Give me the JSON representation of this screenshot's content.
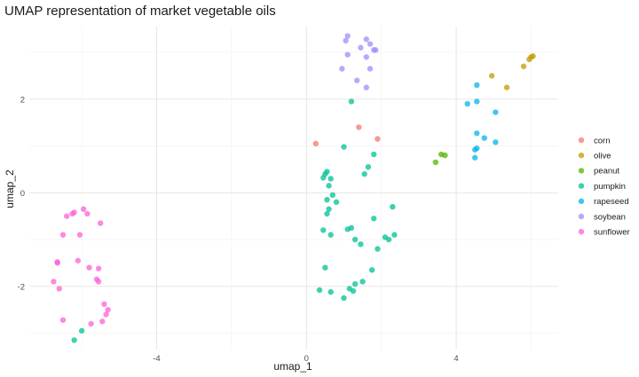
{
  "chart_data": {
    "type": "scatter",
    "title": "UMAP representation of market vegetable oils",
    "xlabel": "umap_1",
    "ylabel": "umap_2",
    "xlim": [
      -7.4,
      6.7
    ],
    "ylim": [
      -3.35,
      3.55
    ],
    "x_ticks": [
      -4,
      0,
      4
    ],
    "y_ticks": [
      -2,
      0,
      2
    ],
    "grid": true,
    "legend_position": "right",
    "series": [
      {
        "name": "corn",
        "color": "#F8766D",
        "points": [
          [
            1.4,
            1.4
          ],
          [
            1.9,
            1.15
          ],
          [
            0.25,
            1.05
          ]
        ]
      },
      {
        "name": "olive",
        "color": "#C49A00",
        "points": [
          [
            4.95,
            2.5
          ],
          [
            5.35,
            2.25
          ],
          [
            5.8,
            2.7
          ],
          [
            5.95,
            2.85
          ],
          [
            6.0,
            2.9
          ],
          [
            6.05,
            2.92
          ]
        ]
      },
      {
        "name": "peanut",
        "color": "#53B400",
        "points": [
          [
            3.45,
            0.65
          ],
          [
            3.6,
            0.82
          ],
          [
            3.7,
            0.8
          ]
        ]
      },
      {
        "name": "pumpkin",
        "color": "#00C094",
        "points": [
          [
            1.2,
            1.95
          ],
          [
            1.0,
            0.98
          ],
          [
            1.8,
            0.82
          ],
          [
            1.65,
            0.55
          ],
          [
            1.55,
            0.4
          ],
          [
            0.5,
            0.4
          ],
          [
            0.55,
            0.45
          ],
          [
            0.45,
            0.32
          ],
          [
            0.65,
            0.3
          ],
          [
            0.6,
            0.15
          ],
          [
            0.7,
            -0.05
          ],
          [
            0.55,
            -0.15
          ],
          [
            0.8,
            -0.2
          ],
          [
            0.6,
            -0.35
          ],
          [
            0.55,
            -0.45
          ],
          [
            2.3,
            -0.3
          ],
          [
            1.8,
            -0.55
          ],
          [
            0.45,
            -0.8
          ],
          [
            0.65,
            -0.9
          ],
          [
            1.1,
            -0.78
          ],
          [
            1.2,
            -0.75
          ],
          [
            1.3,
            -1.0
          ],
          [
            1.45,
            -1.1
          ],
          [
            1.9,
            -1.2
          ],
          [
            2.1,
            -0.95
          ],
          [
            2.2,
            -1.0
          ],
          [
            2.35,
            -0.9
          ],
          [
            0.5,
            -1.6
          ],
          [
            1.75,
            -1.65
          ],
          [
            1.3,
            -1.95
          ],
          [
            1.5,
            -1.9
          ],
          [
            1.15,
            -2.05
          ],
          [
            1.25,
            -2.1
          ],
          [
            0.35,
            -2.08
          ],
          [
            0.65,
            -2.12
          ],
          [
            1.0,
            -2.25
          ],
          [
            -6.2,
            -3.15
          ],
          [
            -6.0,
            -2.95
          ]
        ]
      },
      {
        "name": "rapeseed",
        "color": "#00B6EB",
        "points": [
          [
            4.55,
            2.3
          ],
          [
            4.3,
            1.9
          ],
          [
            4.55,
            1.95
          ],
          [
            5.05,
            1.72
          ],
          [
            4.55,
            1.27
          ],
          [
            4.75,
            1.17
          ],
          [
            5.05,
            1.08
          ],
          [
            4.5,
            0.92
          ],
          [
            4.55,
            0.95
          ],
          [
            4.5,
            0.75
          ]
        ]
      },
      {
        "name": "soybean",
        "color": "#A58AFF",
        "points": [
          [
            1.1,
            3.35
          ],
          [
            1.05,
            3.25
          ],
          [
            1.6,
            3.28
          ],
          [
            1.7,
            3.18
          ],
          [
            1.45,
            3.1
          ],
          [
            1.8,
            3.05
          ],
          [
            1.85,
            3.05
          ],
          [
            1.1,
            2.95
          ],
          [
            1.6,
            2.9
          ],
          [
            0.95,
            2.65
          ],
          [
            1.7,
            2.65
          ],
          [
            1.35,
            2.4
          ],
          [
            1.6,
            2.25
          ]
        ]
      },
      {
        "name": "sunflower",
        "color": "#FB61D7",
        "points": [
          [
            -6.2,
            -0.42
          ],
          [
            -6.25,
            -0.45
          ],
          [
            -6.4,
            -0.5
          ],
          [
            -5.95,
            -0.35
          ],
          [
            -5.85,
            -0.45
          ],
          [
            -5.5,
            -0.65
          ],
          [
            -6.5,
            -0.9
          ],
          [
            -6.05,
            -0.9
          ],
          [
            -6.65,
            -1.48
          ],
          [
            -6.65,
            -1.5
          ],
          [
            -6.1,
            -1.45
          ],
          [
            -5.8,
            -1.6
          ],
          [
            -5.55,
            -1.62
          ],
          [
            -5.6,
            -1.85
          ],
          [
            -5.55,
            -1.9
          ],
          [
            -6.75,
            -1.9
          ],
          [
            -6.6,
            -2.05
          ],
          [
            -5.4,
            -2.38
          ],
          [
            -5.3,
            -2.5
          ],
          [
            -5.35,
            -2.6
          ],
          [
            -6.5,
            -2.72
          ],
          [
            -5.45,
            -2.75
          ],
          [
            -5.75,
            -2.8
          ]
        ]
      }
    ]
  }
}
